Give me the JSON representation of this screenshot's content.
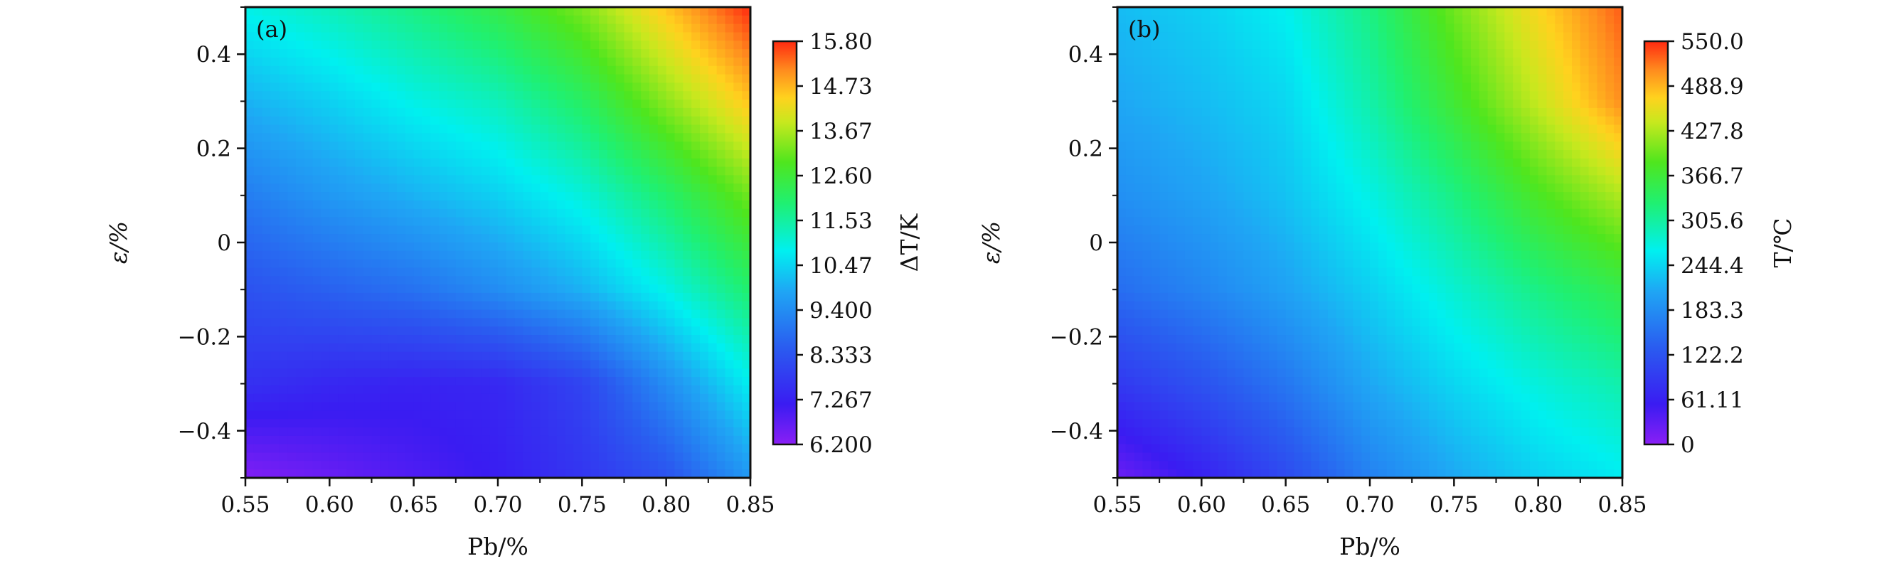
{
  "chart_data": [
    {
      "type": "heatmap",
      "panel_label": "(a)",
      "xlabel": "Pb/%",
      "ylabel": "ε/%",
      "xlim": [
        0.55,
        0.85
      ],
      "ylim": [
        -0.5,
        0.5
      ],
      "x_ticks": [
        "0.55",
        "0.60",
        "0.65",
        "0.70",
        "0.75",
        "0.80",
        "0.85"
      ],
      "y_ticks": [
        "−0.4",
        "−0.2",
        "0",
        "0.2",
        "0.4"
      ],
      "colorbar": {
        "label": "ΔT/K",
        "range": [
          6.2,
          15.8
        ],
        "ticks": [
          "6.200",
          "7.267",
          "8.333",
          "9.400",
          "10.47",
          "11.53",
          "12.60",
          "13.67",
          "14.73",
          "15.80"
        ]
      },
      "x": [
        0.55,
        0.6,
        0.65,
        0.7,
        0.75,
        0.8,
        0.85
      ],
      "y": [
        -0.5,
        -0.3,
        -0.1,
        0.1,
        0.3,
        0.5
      ],
      "z": [
        [
          6.3,
          6.6,
          6.9,
          7.2,
          7.7,
          8.3,
          9.6
        ],
        [
          7.6,
          7.4,
          7.3,
          7.4,
          8.0,
          9.4,
          10.8
        ],
        [
          8.3,
          8.6,
          8.9,
          9.4,
          10.0,
          10.9,
          12.0
        ],
        [
          9.1,
          9.6,
          10.0,
          10.4,
          11.0,
          12.0,
          13.2
        ],
        [
          10.0,
          10.4,
          10.9,
          11.3,
          12.1,
          13.4,
          14.6
        ],
        [
          10.9,
          11.3,
          11.8,
          12.4,
          13.3,
          14.6,
          15.8
        ]
      ]
    },
    {
      "type": "heatmap",
      "panel_label": "(b)",
      "xlabel": "Pb/%",
      "ylabel": "ε/%",
      "xlim": [
        0.55,
        0.85
      ],
      "ylim": [
        -0.5,
        0.5
      ],
      "x_ticks": [
        "0.55",
        "0.60",
        "0.65",
        "0.70",
        "0.75",
        "0.80",
        "0.85"
      ],
      "y_ticks": [
        "−0.4",
        "−0.2",
        "0",
        "0.2",
        "0.4"
      ],
      "colorbar": {
        "label": "T/℃",
        "range": [
          0,
          550
        ],
        "ticks": [
          "0",
          "61.11",
          "122.2",
          "183.3",
          "244.4",
          "305.6",
          "366.7",
          "427.8",
          "488.9",
          "550.0"
        ]
      },
      "x": [
        0.55,
        0.6,
        0.65,
        0.7,
        0.75,
        0.8,
        0.85
      ],
      "y": [
        -0.5,
        -0.3,
        -0.1,
        0.1,
        0.3,
        0.5
      ],
      "z": [
        [
          20,
          60,
          110,
          170,
          210,
          240,
          260
        ],
        [
          90,
          120,
          160,
          210,
          245,
          275,
          300
        ],
        [
          150,
          175,
          205,
          240,
          280,
          320,
          355
        ],
        [
          185,
          205,
          230,
          270,
          320,
          380,
          430
        ],
        [
          210,
          225,
          245,
          300,
          370,
          440,
          510
        ],
        [
          225,
          240,
          265,
          320,
          400,
          470,
          530
        ]
      ]
    }
  ]
}
